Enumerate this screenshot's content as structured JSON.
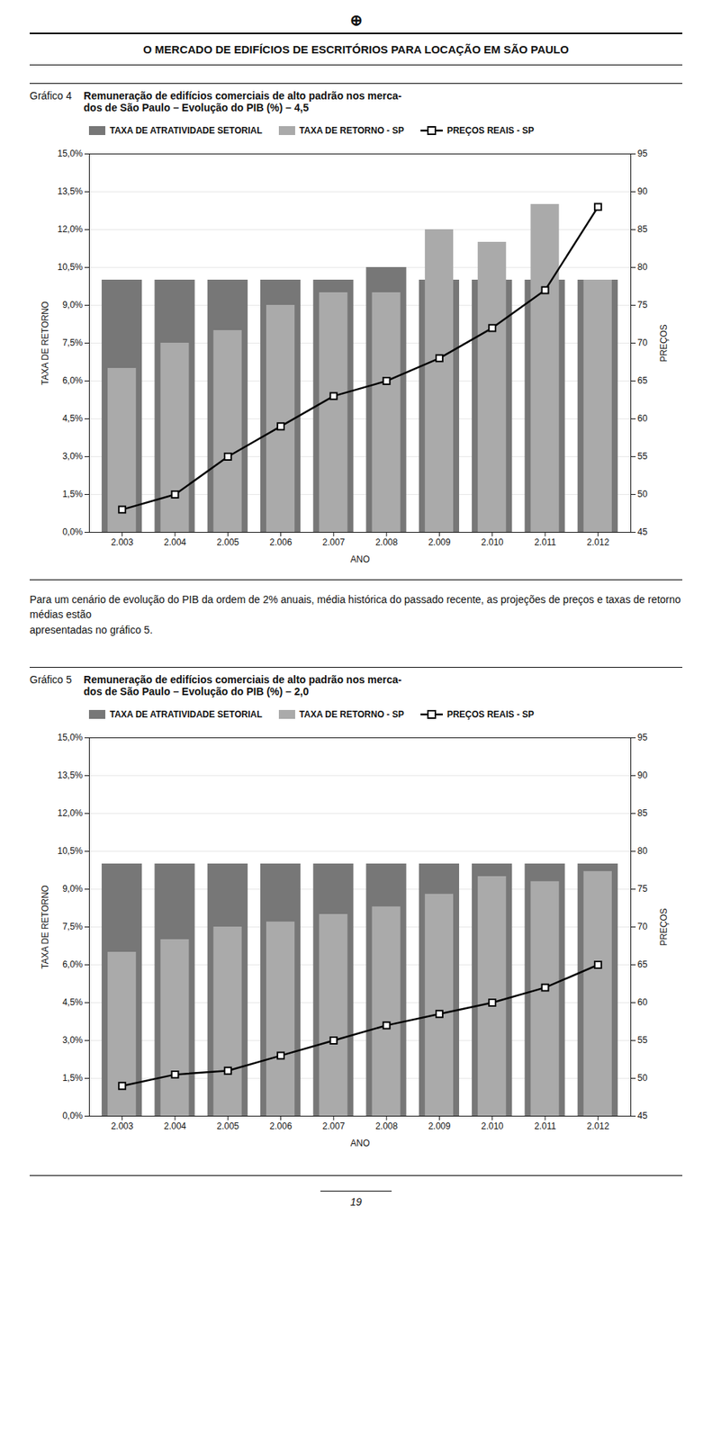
{
  "title": "O MERCADO DE EDIFÍCIOS DE ESCRITÓRIOS PARA LOCAÇÃO EM SÃO PAULO",
  "annotations": [
    "⊕",
    "Para um cenário de evolução do PIB da ordem de 2% anuais, média histórica do passado recente, as projeções de preços e taxas de retorno médias estão\napresentadas no gráfico 5.",
    "19"
  ],
  "chart_data": [
    {
      "type": "bar",
      "title": "Gráfico 4",
      "subtitle": "Remuneração de edifícios comerciais de alto padrão nos merca-\ndos de São Paulo – Evolução do PIB (%) – 4,5",
      "categories": [
        "2.003",
        "2.004",
        "2.005",
        "2.006",
        "2.007",
        "2.008",
        "2.009",
        "2.010",
        "2.011",
        "2.012"
      ],
      "series": [
        {
          "name": "TAXA DE ATRATIVIDADE SETORIAL",
          "type": "bar",
          "color": "#777777",
          "values": [
            0.1,
            0.1,
            0.1,
            0.1,
            0.1,
            0.105,
            0.1,
            0.1,
            0.1,
            0.1
          ]
        },
        {
          "name": "TAXA DE RETORNO - SP",
          "type": "bar",
          "color": "#aaaaaa",
          "values": [
            0.065,
            0.075,
            0.08,
            0.09,
            0.095,
            0.095,
            0.12,
            0.115,
            0.13,
            0.1
          ]
        },
        {
          "name": "PREÇOS REAIS - SP",
          "type": "line",
          "color": "#000000",
          "marker": "square",
          "axis": "y2",
          "values": [
            48,
            50,
            55,
            59,
            63,
            65,
            68,
            72,
            77,
            88
          ]
        }
      ],
      "xlabel": "ANO",
      "ylabel": "TAXA DE RETORNO",
      "y2label": "PREÇOS",
      "ylim": [
        0,
        0.15
      ],
      "yticks": [
        {
          "value": 0.0,
          "label": "0,0%"
        },
        {
          "value": 0.015,
          "label": "1,5%"
        },
        {
          "value": 0.03,
          "label": "3,0%"
        },
        {
          "value": 0.045,
          "label": "4,5%"
        },
        {
          "value": 0.06,
          "label": "6,0%"
        },
        {
          "value": 0.075,
          "label": "7,5%"
        },
        {
          "value": 0.09,
          "label": "9,0%"
        },
        {
          "value": 0.105,
          "label": "10,5%"
        },
        {
          "value": 0.12,
          "label": "12,0%"
        },
        {
          "value": 0.135,
          "label": "13,5%"
        },
        {
          "value": 0.15,
          "label": "15,0%"
        }
      ],
      "y2lim": [
        45,
        95
      ],
      "y2ticks": [
        45,
        50,
        55,
        60,
        65,
        70,
        75,
        80,
        85,
        90,
        95
      ],
      "grid": true,
      "legend": "upper left"
    },
    {
      "type": "bar",
      "title": "Gráfico 5",
      "subtitle": "Remuneração de edifícios comerciais de alto padrão nos merca-\ndos de São Paulo – Evolução do PIB (%) – 2,0",
      "categories": [
        "2.003",
        "2.004",
        "2.005",
        "2.006",
        "2.007",
        "2.008",
        "2.009",
        "2.010",
        "2.011",
        "2.012"
      ],
      "series": [
        {
          "name": "TAXA DE ATRATIVIDADE SETORIAL",
          "type": "bar",
          "color": "#777777",
          "values": [
            0.1,
            0.1,
            0.1,
            0.1,
            0.1,
            0.1,
            0.1,
            0.1,
            0.1,
            0.1
          ]
        },
        {
          "name": "TAXA DE RETORNO - SP",
          "type": "bar",
          "color": "#aaaaaa",
          "values": [
            0.065,
            0.07,
            0.075,
            0.077,
            0.08,
            0.083,
            0.088,
            0.095,
            0.093,
            0.097
          ]
        },
        {
          "name": "PREÇOS REAIS - SP",
          "type": "line",
          "color": "#000000",
          "marker": "square",
          "axis": "y2",
          "values": [
            49,
            50.5,
            51,
            53,
            55,
            57,
            58.5,
            60,
            62,
            65
          ]
        }
      ],
      "xlabel": "ANO",
      "ylabel": "TAXA DE RETORNO",
      "y2label": "PREÇOS",
      "ylim": [
        0,
        0.15
      ],
      "yticks": [
        {
          "value": 0.0,
          "label": "0,0%"
        },
        {
          "value": 0.015,
          "label": "1,5%"
        },
        {
          "value": 0.03,
          "label": "3,0%"
        },
        {
          "value": 0.045,
          "label": "4,5%"
        },
        {
          "value": 0.06,
          "label": "6,0%"
        },
        {
          "value": 0.075,
          "label": "7,5%"
        },
        {
          "value": 0.09,
          "label": "9,0%"
        },
        {
          "value": 0.105,
          "label": "10,5%"
        },
        {
          "value": 0.12,
          "label": "12,0%"
        },
        {
          "value": 0.135,
          "label": "13,5%"
        },
        {
          "value": 0.15,
          "label": "15,0%"
        }
      ],
      "y2lim": [
        45,
        95
      ],
      "y2ticks": [
        45,
        50,
        55,
        60,
        65,
        70,
        75,
        80,
        85,
        90,
        95
      ],
      "grid": true,
      "legend": "upper left"
    }
  ]
}
